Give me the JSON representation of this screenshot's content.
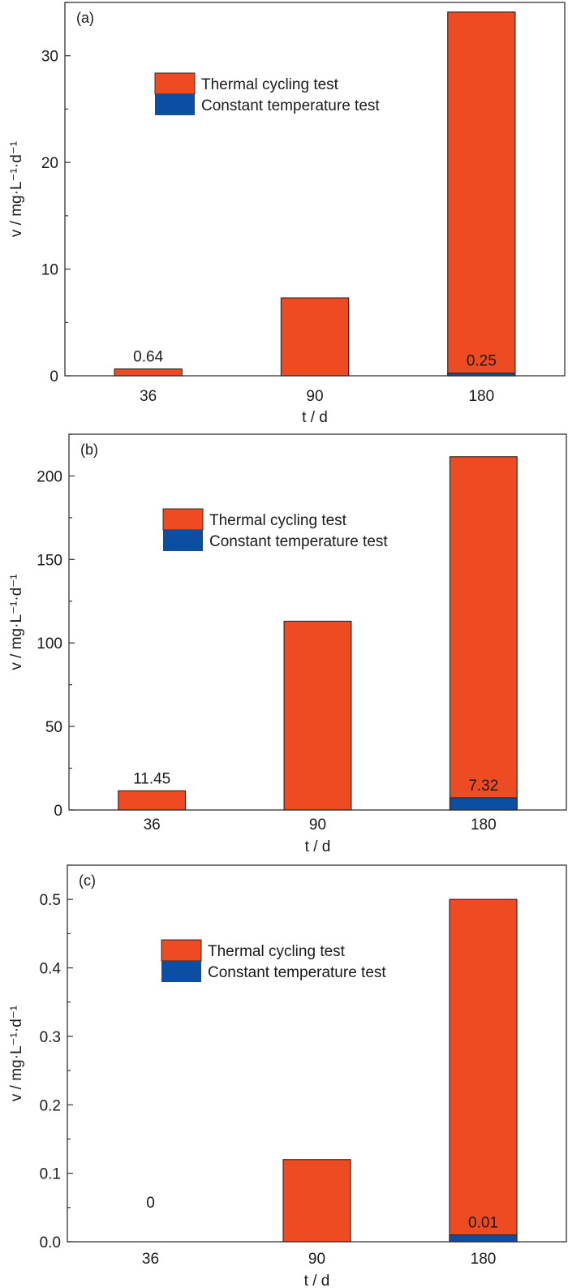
{
  "colors": {
    "thermal": "#EE4B23",
    "constant": "#0B4EA2",
    "outline": "#3a2a26",
    "axis": "#333333"
  },
  "chart_data": [
    {
      "type": "bar",
      "panel_label": "(a)",
      "title": "",
      "xlabel": "t / d",
      "ylabel": "v / mg·L⁻¹·d⁻¹",
      "categories": [
        "36",
        "90",
        "180"
      ],
      "ylim": [
        0,
        35
      ],
      "yticks": [
        0,
        10,
        20,
        30
      ],
      "ytick_labels": [
        "0",
        "10",
        "20",
        "30"
      ],
      "minor_step": 5,
      "legend": {
        "position": "upper-center",
        "entries": [
          "Thermal cycling test",
          "Constant temperature test"
        ]
      },
      "series": [
        {
          "name": "Thermal cycling test",
          "values": [
            0.64,
            7.3,
            34.1
          ]
        },
        {
          "name": "Constant temperature test",
          "values": [
            null,
            null,
            0.25
          ]
        }
      ],
      "annotations": [
        {
          "category": "36",
          "series": "Thermal cycling test",
          "text": "0.64"
        },
        {
          "category": "180",
          "series": "Constant temperature test",
          "text": "0.25"
        }
      ]
    },
    {
      "type": "bar",
      "panel_label": "(b)",
      "title": "",
      "xlabel": "t / d",
      "ylabel": "v / mg·L⁻¹·d⁻¹",
      "categories": [
        "36",
        "90",
        "180"
      ],
      "ylim": [
        0,
        225
      ],
      "yticks": [
        0,
        50,
        100,
        150,
        200
      ],
      "ytick_labels": [
        "0",
        "50",
        "100",
        "150",
        "200"
      ],
      "minor_step": 25,
      "legend": {
        "position": "upper-center",
        "entries": [
          "Thermal cycling test",
          "Constant temperature test"
        ]
      },
      "series": [
        {
          "name": "Thermal cycling test",
          "values": [
            11.45,
            113,
            211.5
          ]
        },
        {
          "name": "Constant temperature test",
          "values": [
            null,
            null,
            7.32
          ]
        }
      ],
      "annotations": [
        {
          "category": "36",
          "series": "Thermal cycling test",
          "text": "11.45"
        },
        {
          "category": "180",
          "series": "Constant temperature test",
          "text": "7.32"
        }
      ]
    },
    {
      "type": "bar",
      "panel_label": "(c)",
      "title": "",
      "xlabel": "t / d",
      "ylabel": "v / mg·L⁻¹·d⁻¹",
      "categories": [
        "36",
        "90",
        "180"
      ],
      "ylim": [
        0,
        0.55
      ],
      "yticks": [
        0,
        0.1,
        0.2,
        0.3,
        0.4,
        0.5
      ],
      "ytick_labels": [
        "0.0",
        "0.1",
        "0.2",
        "0.3",
        "0.4",
        "0.5"
      ],
      "minor_step": 0.05,
      "legend": {
        "position": "upper-center",
        "entries": [
          "Thermal cycling test",
          "Constant temperature test"
        ]
      },
      "series": [
        {
          "name": "Thermal cycling test",
          "values": [
            0,
            0.12,
            0.5
          ]
        },
        {
          "name": "Constant temperature test",
          "values": [
            null,
            null,
            0.01
          ]
        }
      ],
      "annotations": [
        {
          "category": "36",
          "series": "Thermal cycling test",
          "text": "0"
        },
        {
          "category": "180",
          "series": "Constant temperature test",
          "text": "0.01"
        }
      ]
    }
  ]
}
